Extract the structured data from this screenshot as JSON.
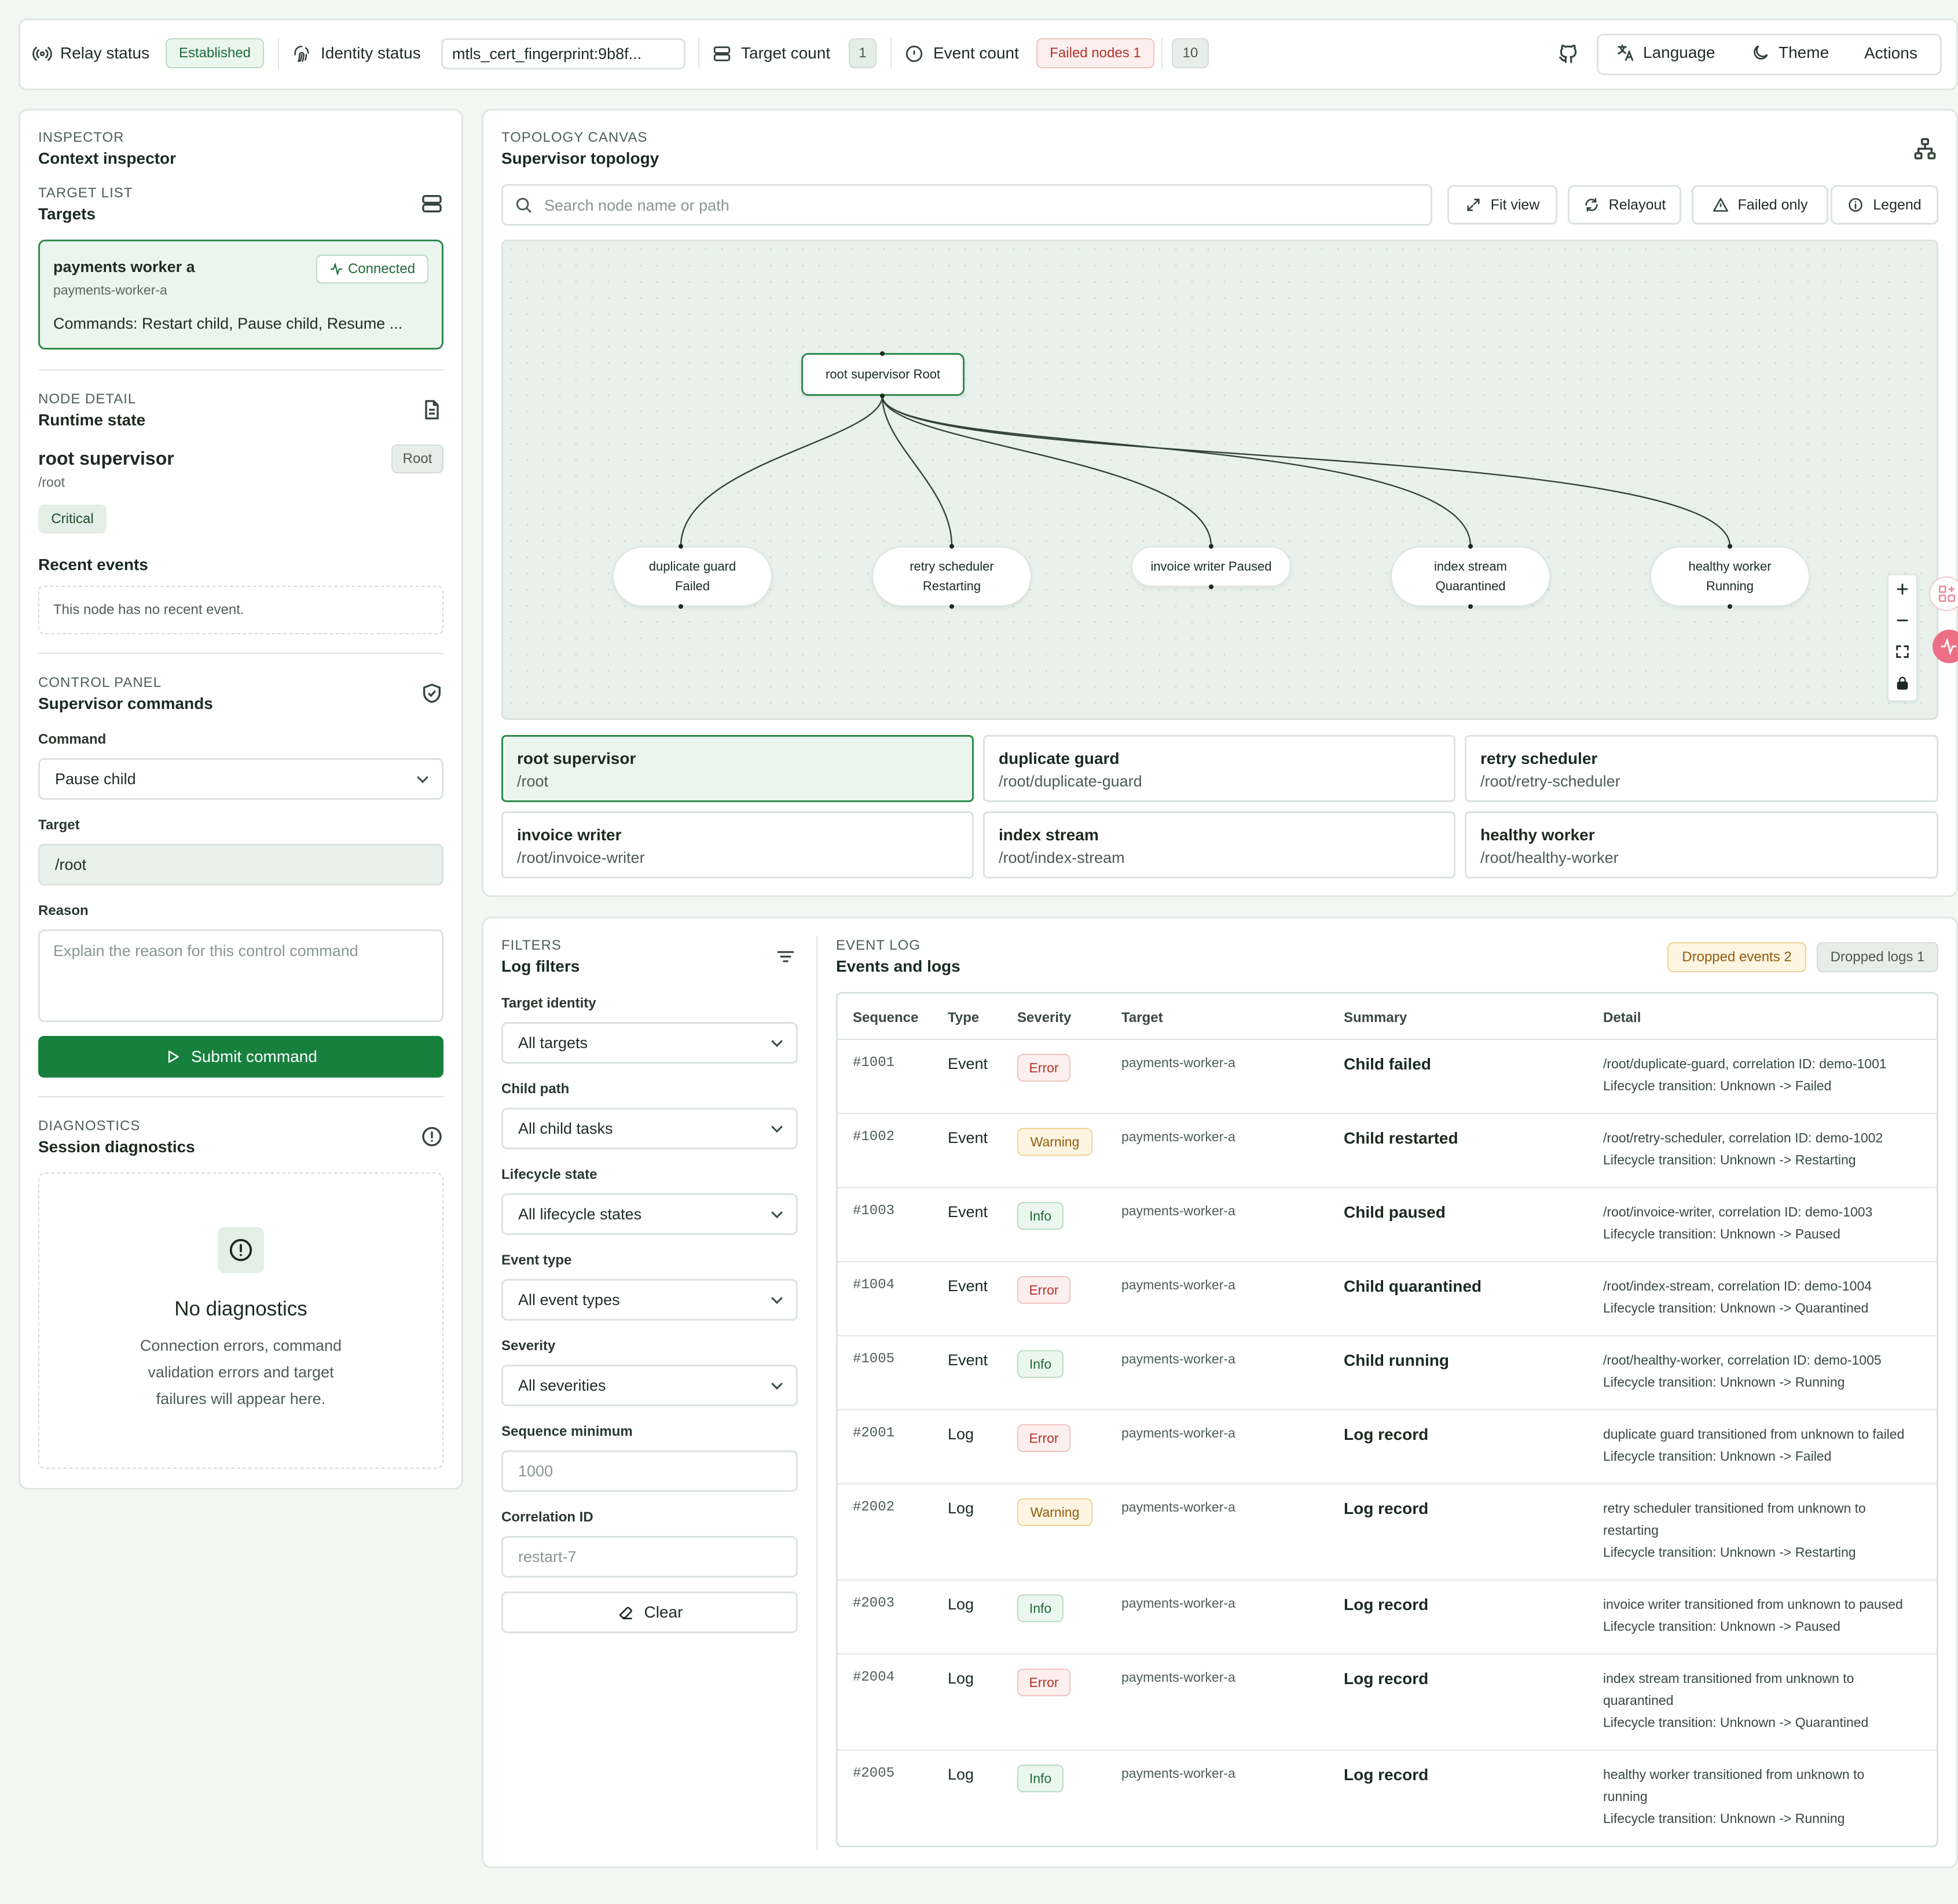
{
  "header": {
    "relay_label": "Relay status",
    "relay_value": "Established",
    "identity_label": "Identity status",
    "identity_value": "mtls_cert_fingerprint:9b8f...",
    "target_label": "Target count",
    "target_value": "1",
    "event_label": "Event count",
    "failed_badge": "Failed nodes 1",
    "event_value": "10",
    "language": "Language",
    "theme": "Theme",
    "actions": "Actions"
  },
  "inspector": {
    "kicker": "INSPECTOR",
    "title": "Context inspector",
    "target_list_kicker": "TARGET LIST",
    "target_list_title": "Targets",
    "target_card": {
      "name": "payments worker a",
      "status": "Connected",
      "id": "payments-worker-a",
      "commands": "Commands: Restart child, Pause child, Resume ..."
    },
    "node_detail_kicker": "NODE DETAIL",
    "node_detail_title": "Runtime state",
    "node_name": "root supervisor",
    "node_role": "Root",
    "node_path": "/root",
    "node_criticality": "Critical",
    "recent_events_title": "Recent events",
    "recent_events_empty": "This node has no recent event.",
    "control_kicker": "CONTROL PANEL",
    "control_title": "Supervisor commands",
    "command_label": "Command",
    "command_value": "Pause child",
    "target_label": "Target",
    "target_value": "/root",
    "reason_label": "Reason",
    "reason_placeholder": "Explain the reason for this control command",
    "submit": "Submit command",
    "diagnostics_kicker": "DIAGNOSTICS",
    "diagnostics_title": "Session diagnostics",
    "diag_empty_title": "No diagnostics",
    "diag_empty_line1": "Connection errors, command",
    "diag_empty_line2": "validation errors and target",
    "diag_empty_line3": "failures will appear here."
  },
  "topology": {
    "kicker": "TOPOLOGY CANVAS",
    "title": "Supervisor topology",
    "search_placeholder": "Search node name or path",
    "fit_view": "Fit view",
    "relayout": "Relayout",
    "failed_only": "Failed only",
    "legend": "Legend",
    "root_node": "root supervisor Root",
    "children": [
      {
        "line1": "duplicate guard",
        "line2": "Failed"
      },
      {
        "line1": "retry scheduler",
        "line2": "Restarting"
      },
      {
        "line1": "invoice writer Paused",
        "line2": ""
      },
      {
        "line1": "index stream",
        "line2": "Quarantined"
      },
      {
        "line1": "healthy worker",
        "line2": "Running"
      }
    ],
    "tiles": [
      {
        "name": "root supervisor",
        "path": "/root"
      },
      {
        "name": "duplicate guard",
        "path": "/root/duplicate-guard"
      },
      {
        "name": "retry scheduler",
        "path": "/root/retry-scheduler"
      },
      {
        "name": "invoice writer",
        "path": "/root/invoice-writer"
      },
      {
        "name": "index stream",
        "path": "/root/index-stream"
      },
      {
        "name": "healthy worker",
        "path": "/root/healthy-worker"
      }
    ]
  },
  "filters": {
    "kicker": "FILTERS",
    "title": "Log filters",
    "target_identity_label": "Target identity",
    "target_identity_value": "All targets",
    "child_path_label": "Child path",
    "child_path_value": "All child tasks",
    "lifecycle_label": "Lifecycle state",
    "lifecycle_value": "All lifecycle states",
    "event_type_label": "Event type",
    "event_type_value": "All event types",
    "severity_label": "Severity",
    "severity_value": "All severities",
    "seq_min_label": "Sequence minimum",
    "seq_min_placeholder": "1000",
    "correlation_label": "Correlation ID",
    "correlation_placeholder": "restart-7",
    "clear": "Clear"
  },
  "event_log": {
    "kicker": "EVENT LOG",
    "title": "Events and logs",
    "dropped_events": "Dropped events 2",
    "dropped_logs": "Dropped logs 1",
    "columns": [
      "Sequence",
      "Type",
      "Severity",
      "Target",
      "Summary",
      "Detail"
    ],
    "rows": [
      {
        "seq": "#1001",
        "type": "Event",
        "severity": "Error",
        "target": "payments-worker-a",
        "summary": "Child failed",
        "detail": [
          "/root/duplicate-guard, correlation ID: demo-1001",
          "Lifecycle transition: Unknown -> Failed"
        ]
      },
      {
        "seq": "#1002",
        "type": "Event",
        "severity": "Warning",
        "target": "payments-worker-a",
        "summary": "Child restarted",
        "detail": [
          "/root/retry-scheduler, correlation ID: demo-1002",
          "Lifecycle transition: Unknown -> Restarting"
        ]
      },
      {
        "seq": "#1003",
        "type": "Event",
        "severity": "Info",
        "target": "payments-worker-a",
        "summary": "Child paused",
        "detail": [
          "/root/invoice-writer, correlation ID: demo-1003",
          "Lifecycle transition: Unknown -> Paused"
        ]
      },
      {
        "seq": "#1004",
        "type": "Event",
        "severity": "Error",
        "target": "payments-worker-a",
        "summary": "Child quarantined",
        "detail": [
          "/root/index-stream, correlation ID: demo-1004",
          "Lifecycle transition: Unknown -> Quarantined"
        ]
      },
      {
        "seq": "#1005",
        "type": "Event",
        "severity": "Info",
        "target": "payments-worker-a",
        "summary": "Child running",
        "detail": [
          "/root/healthy-worker, correlation ID: demo-1005",
          "Lifecycle transition: Unknown -> Running"
        ]
      },
      {
        "seq": "#2001",
        "type": "Log",
        "severity": "Error",
        "target": "payments-worker-a",
        "summary": "Log record",
        "detail": [
          "duplicate guard transitioned from unknown to failed",
          "Lifecycle transition: Unknown -> Failed"
        ]
      },
      {
        "seq": "#2002",
        "type": "Log",
        "severity": "Warning",
        "target": "payments-worker-a",
        "summary": "Log record",
        "detail": [
          "retry scheduler transitioned from unknown to",
          "restarting",
          "Lifecycle transition: Unknown -> Restarting"
        ]
      },
      {
        "seq": "#2003",
        "type": "Log",
        "severity": "Info",
        "target": "payments-worker-a",
        "summary": "Log record",
        "detail": [
          "invoice writer transitioned from unknown to paused",
          "Lifecycle transition: Unknown -> Paused"
        ]
      },
      {
        "seq": "#2004",
        "type": "Log",
        "severity": "Error",
        "target": "payments-worker-a",
        "summary": "Log record",
        "detail": [
          "index stream transitioned from unknown to",
          "quarantined",
          "Lifecycle transition: Unknown -> Quarantined"
        ]
      },
      {
        "seq": "#2005",
        "type": "Log",
        "severity": "Info",
        "target": "payments-worker-a",
        "summary": "Log record",
        "detail": [
          "healthy worker transitioned from unknown to",
          "running",
          "Lifecycle transition: Unknown -> Running"
        ]
      }
    ]
  },
  "colors": {
    "accent": "#17803d",
    "error": "#b4322b",
    "warning": "#925d0d",
    "info": "#1f6a3a"
  }
}
